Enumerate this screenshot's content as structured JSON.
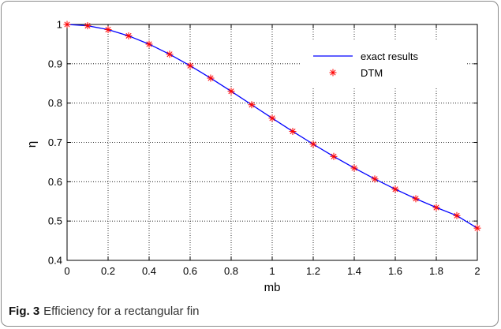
{
  "chart_data": {
    "type": "line",
    "xlabel": "mb",
    "ylabel": "η",
    "xlim": [
      0,
      2
    ],
    "ylim": [
      0.4,
      1
    ],
    "x_ticks": [
      "0",
      "0.2",
      "0.4",
      "0.6",
      "0.8",
      "1",
      "1.2",
      "1.4",
      "1.6",
      "1.8",
      "2"
    ],
    "y_ticks": [
      "0.4",
      "0.5",
      "0.6",
      "0.7",
      "0.8",
      "0.9",
      "1"
    ],
    "grid": true,
    "legend_position": "top-right",
    "series": [
      {
        "name": "exact results",
        "style": "line",
        "color": "#0000ff",
        "x": [
          0,
          0.1,
          0.2,
          0.3,
          0.4,
          0.5,
          0.6,
          0.7,
          0.8,
          0.9,
          1.0,
          1.1,
          1.2,
          1.3,
          1.4,
          1.5,
          1.6,
          1.7,
          1.8,
          1.9,
          2.0
        ],
        "y": [
          1.0,
          0.9967,
          0.9869,
          0.971,
          0.9499,
          0.9242,
          0.8951,
          0.8635,
          0.8301,
          0.7958,
          0.7616,
          0.728,
          0.6955,
          0.6643,
          0.6348,
          0.607,
          0.581,
          0.5568,
          0.5344,
          0.5138,
          0.482
        ]
      },
      {
        "name": "DTM",
        "style": "markers",
        "marker": "asterisk",
        "color": "#ff0000",
        "x": [
          0,
          0.1,
          0.2,
          0.3,
          0.4,
          0.5,
          0.6,
          0.7,
          0.8,
          0.9,
          1.0,
          1.1,
          1.2,
          1.3,
          1.4,
          1.5,
          1.6,
          1.7,
          1.8,
          1.9,
          2.0
        ],
        "y": [
          1.0,
          0.9967,
          0.9869,
          0.971,
          0.9499,
          0.9242,
          0.8951,
          0.8635,
          0.8301,
          0.7958,
          0.7616,
          0.728,
          0.6955,
          0.6643,
          0.6348,
          0.607,
          0.581,
          0.5568,
          0.5344,
          0.5138,
          0.482
        ]
      }
    ]
  },
  "caption": {
    "label": "Fig. 3",
    "text": "Efficiency for a rectangular fin"
  }
}
